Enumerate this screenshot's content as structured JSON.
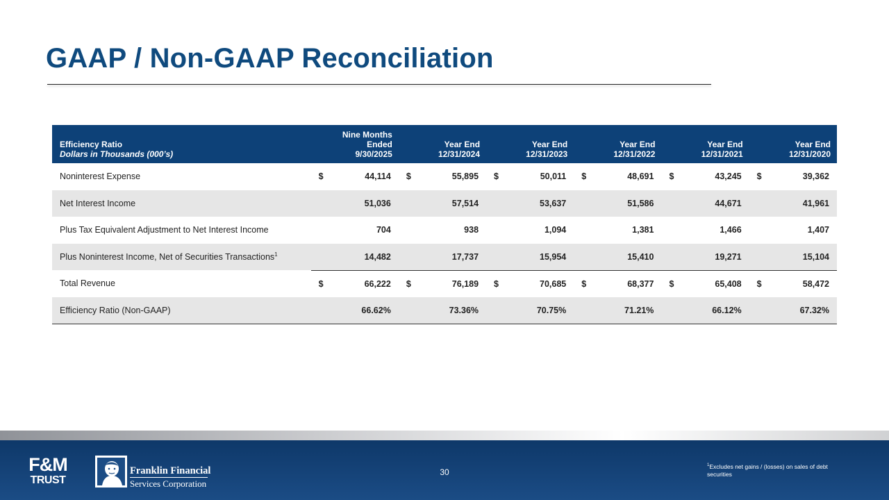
{
  "slide": {
    "title": "GAAP / Non-GAAP Reconciliation",
    "page_number": "30"
  },
  "table": {
    "header": {
      "label_line1": "Efficiency Ratio",
      "label_line2": "Dollars in Thousands (000’s)",
      "columns": [
        {
          "line1": "Nine Months Ended",
          "line2": "9/30/2025"
        },
        {
          "line1": "Year End",
          "line2": "12/31/2024"
        },
        {
          "line1": "Year End",
          "line2": "12/31/2023"
        },
        {
          "line1": "Year End",
          "line2": "12/31/2022"
        },
        {
          "line1": "Year End",
          "line2": "12/31/2021"
        },
        {
          "line1": "Year End",
          "line2": "12/31/2020"
        }
      ]
    },
    "currency_symbol": "$",
    "rows": [
      {
        "label": "Noninterest Expense",
        "label_sup": "",
        "values": [
          "44,114",
          "55,895",
          "50,011",
          "48,691",
          "43,245",
          "39,362"
        ]
      },
      {
        "label": "Net Interest Income",
        "label_sup": "",
        "values": [
          "51,036",
          "57,514",
          "53,637",
          "51,586",
          "44,671",
          "41,961"
        ]
      },
      {
        "label": "Plus Tax Equivalent Adjustment to Net Interest Income",
        "label_sup": "",
        "values": [
          "704",
          "938",
          "1,094",
          "1,381",
          "1,466",
          "1,407"
        ]
      },
      {
        "label": "Plus Noninterest Income, Net of Securities Transactions",
        "label_sup": "1",
        "values": [
          "14,482",
          "17,737",
          "15,954",
          "15,410",
          "19,271",
          "15,104"
        ]
      },
      {
        "label": "Total Revenue",
        "label_sup": "",
        "values": [
          "66,222",
          "76,189",
          "70,685",
          "68,377",
          "65,408",
          "58,472"
        ]
      },
      {
        "label": "Efficiency Ratio (Non-GAAP)",
        "label_sup": "",
        "values": [
          "66.62%",
          "73.36%",
          "70.75%",
          "71.21%",
          "66.12%",
          "67.32%"
        ]
      }
    ]
  },
  "footer": {
    "fm_logo_top": "F&M",
    "fm_logo_bottom": "TRUST",
    "company_line1": "Franklin Financial",
    "company_line2": "Services Corporation",
    "footnote_marker": "1",
    "footnote_text": "Excludes net gains / (losses) on sales of debt securities"
  },
  "colors": {
    "title": "#0f4a7e",
    "header_bg": "#0d4178",
    "row_shade": "#e6e6e6",
    "footer_bg": "#1b4c85"
  }
}
